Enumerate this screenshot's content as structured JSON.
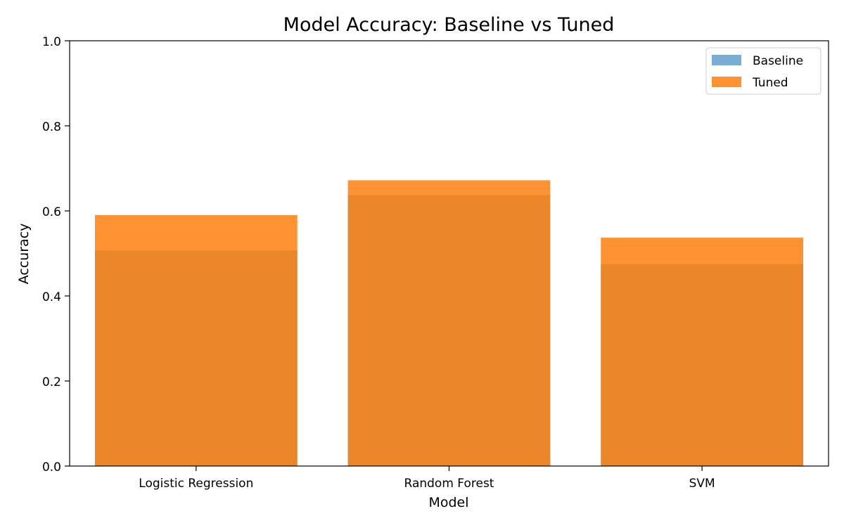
{
  "chart_data": {
    "type": "bar",
    "title": "Model Accuracy: Baseline vs Tuned",
    "xlabel": "Model",
    "ylabel": "Accuracy",
    "categories": [
      "Logistic Regression",
      "Random Forest",
      "SVM"
    ],
    "series": [
      {
        "name": "Baseline",
        "values": [
          0.507,
          0.637,
          0.475
        ],
        "color": "#1f77b4",
        "opacity": 0.6
      },
      {
        "name": "Tuned",
        "values": [
          0.59,
          0.672,
          0.537
        ],
        "color": "#ff7f0e",
        "opacity": 0.85
      }
    ],
    "ylim": [
      0,
      1.0
    ],
    "yticks": [
      "0.0",
      "0.2",
      "0.4",
      "0.6",
      "0.8",
      "1.0"
    ],
    "grid": false,
    "legend_position": "top-right"
  }
}
